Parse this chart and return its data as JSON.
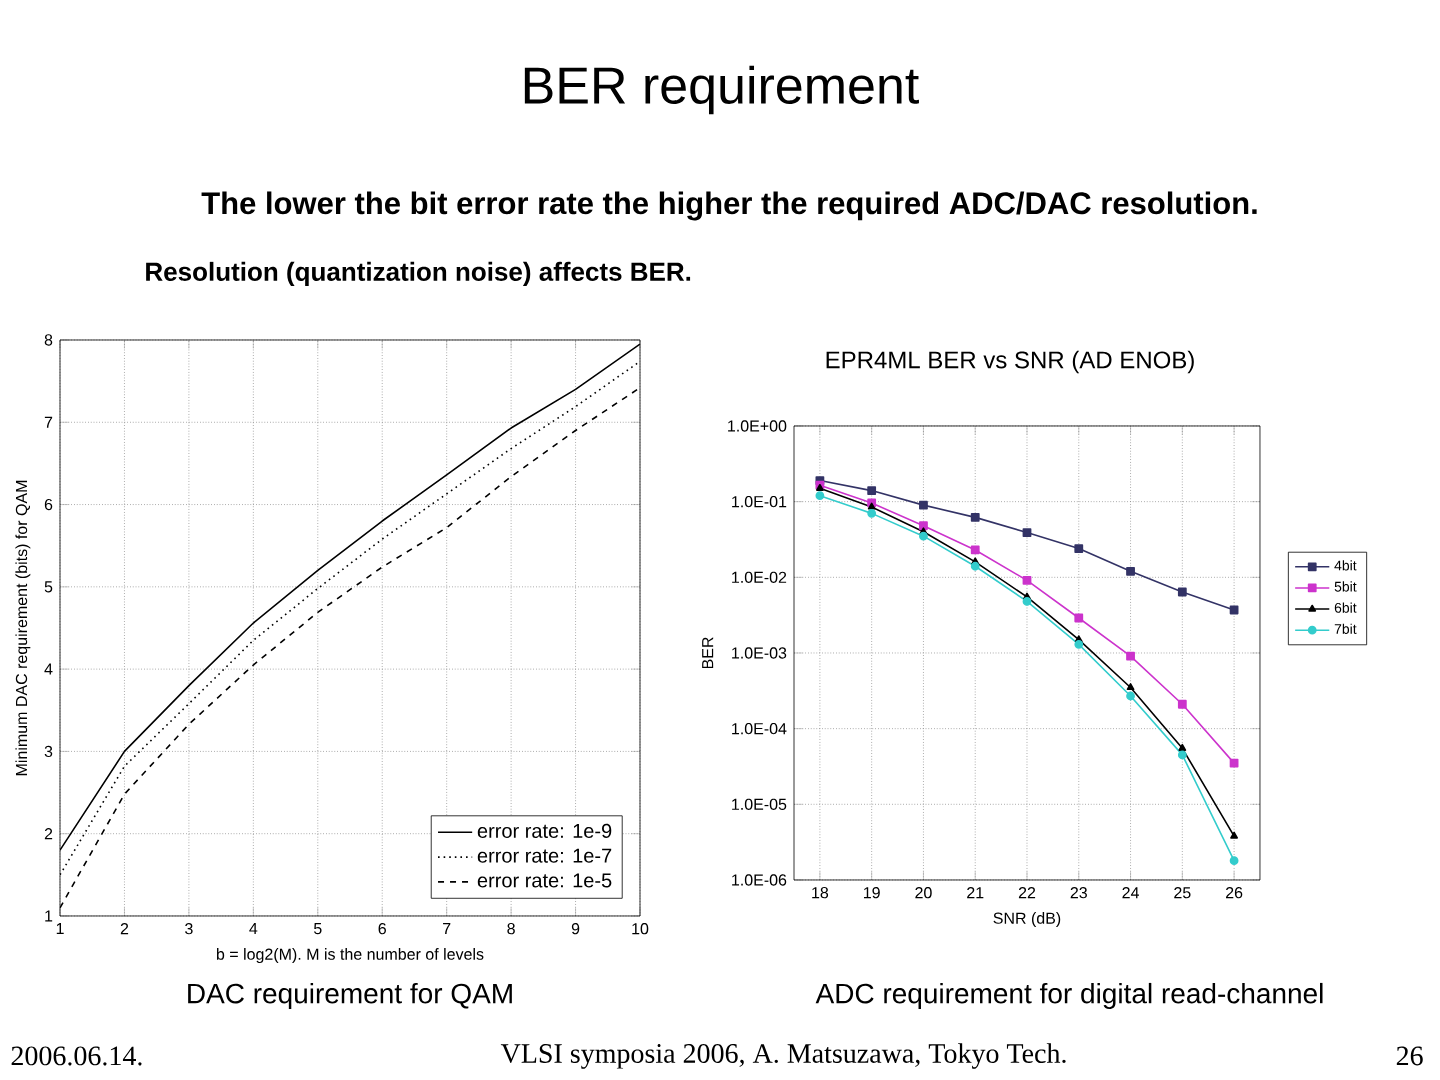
{
  "chart_data": [
    {
      "type": "other",
      "title": "BER requirement",
      "subtitle": "The lower the bit error rate the higher the required ADC/DAC resolution.",
      "annotations": [
        "Resolution (quantization noise) affects BER.",
        "2006.06.14.",
        "VLSI symposia 2006,  A. Matsuzawa, Tokyo Tech.",
        "26"
      ]
    },
    {
      "type": "line",
      "xlabel": "b = log2(M). M is the number of levels",
      "ylabel": "Minimum DAC requirement (bits) for QAM",
      "annotations": [
        "DAC requirement for QAM"
      ],
      "x": [
        1,
        2,
        3,
        4,
        5,
        6,
        7,
        8,
        9,
        10
      ],
      "xlim": [
        1,
        10
      ],
      "ylim": [
        1,
        8
      ],
      "xticks": [
        1,
        2,
        3,
        4,
        5,
        6,
        7,
        8,
        9,
        10
      ],
      "yticks": [
        1,
        2,
        3,
        4,
        5,
        6,
        7,
        8
      ],
      "grid": true,
      "legend": "bottom right",
      "series": [
        {
          "name": "error rate: 1e-9",
          "color": "#000000",
          "line_style": "solid",
          "values": [
            1.8,
            3.0,
            3.8,
            4.56,
            5.2,
            5.8,
            6.36,
            6.93,
            7.4,
            7.95
          ]
        },
        {
          "name": "error rate: 1e-7",
          "color": "#000000",
          "line_style": "dotted",
          "values": [
            1.5,
            2.82,
            3.58,
            4.35,
            4.98,
            5.58,
            6.13,
            6.68,
            7.19,
            7.74
          ]
        },
        {
          "name": "error rate: 1e-5",
          "color": "#000000",
          "line_style": "dashed",
          "values": [
            1.1,
            2.48,
            3.33,
            4.05,
            4.69,
            5.24,
            5.72,
            6.34,
            6.9,
            7.42
          ]
        }
      ]
    },
    {
      "type": "line",
      "title": "EPR4ML BER vs SNR (AD ENOB)",
      "xlabel": "SNR (dB)",
      "ylabel": "BER",
      "annotations": [
        "ADC requirement for digital read-channel"
      ],
      "x": [
        18,
        19,
        20,
        21,
        22,
        23,
        24,
        25,
        26
      ],
      "xlim": [
        17.5,
        26.5
      ],
      "ylim": [
        1e-06,
        1
      ],
      "xticks": [
        18,
        19,
        20,
        21,
        22,
        23,
        24,
        25,
        26
      ],
      "yticks": [
        {
          "value": 1,
          "label": "1.0E+00"
        },
        {
          "value": 0.1,
          "label": "1.0E-01"
        },
        {
          "value": 0.01,
          "label": "1.0E-02"
        },
        {
          "value": 0.001,
          "label": "1.0E-03"
        },
        {
          "value": 0.0001,
          "label": "1.0E-04"
        },
        {
          "value": 1e-05,
          "label": "1.0E-05"
        },
        {
          "value": 1e-06,
          "label": "1.0E-06"
        }
      ],
      "log": "y",
      "grid": true,
      "legend": "right",
      "series": [
        {
          "name": "4bit",
          "color": "#333366",
          "marker": "square",
          "values": [
            0.19,
            0.14,
            0.09,
            0.062,
            0.039,
            0.024,
            0.012,
            0.0064,
            0.0037
          ]
        },
        {
          "name": "5bit",
          "color": "#cc33cc",
          "marker": "square",
          "values": [
            0.165,
            0.096,
            0.048,
            0.023,
            0.0091,
            0.0029,
            0.00091,
            0.00021,
            3.5e-05
          ]
        },
        {
          "name": "6bit",
          "color": "#000000",
          "marker": "triangle",
          "values": [
            0.15,
            0.085,
            0.04,
            0.016,
            0.0055,
            0.0015,
            0.00035,
            5.5e-05,
            3.8e-06
          ]
        },
        {
          "name": "7bit",
          "color": "#33cccc",
          "marker": "circle",
          "values": [
            0.12,
            0.07,
            0.035,
            0.014,
            0.0048,
            0.0013,
            0.00027,
            4.5e-05,
            1.8e-06
          ]
        }
      ]
    }
  ]
}
